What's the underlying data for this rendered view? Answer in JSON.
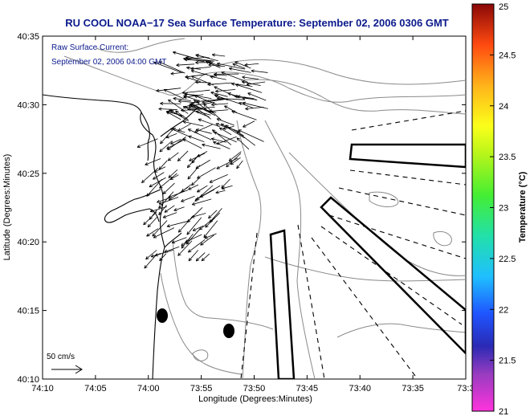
{
  "chart_data": {
    "type": "vector-field map",
    "title": "RU COOL  NOAA−17  Sea Surface Temperature:  September 02, 2006 0306 GMT",
    "annotation_lines": [
      "Raw Surface Current:",
      "September 02, 2006 04:00 GMT"
    ],
    "xlabel": "Longitude (Degrees:Minutes)",
    "ylabel": "Latitude (Degrees:Minutes)",
    "x_ticks": [
      "74:10",
      "74:05",
      "74:00",
      "73:55",
      "73:50",
      "73:45",
      "73:40",
      "73:35",
      "73:3"
    ],
    "y_ticks": [
      "40:35",
      "40:30",
      "40:25",
      "40:20",
      "40:15",
      "40:10"
    ],
    "xlim": [
      -74.1667,
      -73.5
    ],
    "ylim": [
      40.1667,
      40.5833
    ],
    "scale_label": "50 cm/s",
    "colorbar": {
      "label": "Temperature (°C)",
      "ticks": [
        "25",
        "24.5",
        "24",
        "23.5",
        "23",
        "22.5",
        "22",
        "21.5",
        "21"
      ],
      "range": [
        21,
        25
      ]
    },
    "colors": {
      "title": "#0b1a8c",
      "annotation": "#0b1a8c",
      "frame": "#000000",
      "contour": "#8a8a8a",
      "coast": "#000000",
      "vectors": "#000000"
    }
  }
}
